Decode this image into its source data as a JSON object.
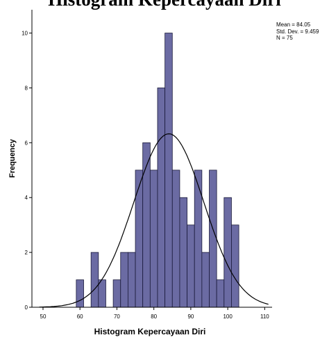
{
  "chart_data": {
    "type": "bar",
    "title": "Histogram Kepercayaan Diri",
    "xlabel": "Histogram Kepercayaan Diri",
    "ylabel": "Frequency",
    "xlim": [
      47,
      112
    ],
    "ylim": [
      0,
      10.8
    ],
    "x_ticks": [
      50,
      60,
      70,
      80,
      90,
      100,
      110
    ],
    "y_ticks": [
      0,
      2,
      4,
      6,
      8,
      10
    ],
    "bin_width": 2,
    "bins": [
      {
        "start": 59,
        "count": 1
      },
      {
        "start": 63,
        "count": 2
      },
      {
        "start": 65,
        "count": 1
      },
      {
        "start": 69,
        "count": 1
      },
      {
        "start": 71,
        "count": 2
      },
      {
        "start": 73,
        "count": 2
      },
      {
        "start": 75,
        "count": 5
      },
      {
        "start": 77,
        "count": 6
      },
      {
        "start": 79,
        "count": 5
      },
      {
        "start": 81,
        "count": 8
      },
      {
        "start": 83,
        "count": 10
      },
      {
        "start": 85,
        "count": 5
      },
      {
        "start": 87,
        "count": 4
      },
      {
        "start": 89,
        "count": 3
      },
      {
        "start": 91,
        "count": 5
      },
      {
        "start": 93,
        "count": 2
      },
      {
        "start": 95,
        "count": 5
      },
      {
        "start": 97,
        "count": 1
      },
      {
        "start": 99,
        "count": 4
      },
      {
        "start": 101,
        "count": 3
      }
    ],
    "normal_curve": {
      "mean": 84.05,
      "sd": 9.459,
      "n": 75
    },
    "stats": {
      "mean": "Mean = 84.05",
      "sd": "Std. Dev. = 9.459",
      "n": "N = 75"
    },
    "grid": false,
    "legend": "none",
    "colors": {
      "bar_fill": "#6b6ba3",
      "bar_stroke": "#1a1a3a",
      "curve": "#000000",
      "axis": "#000000"
    }
  }
}
